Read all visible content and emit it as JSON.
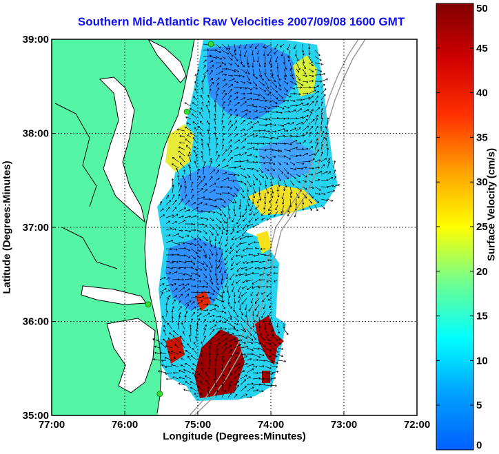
{
  "title": "Southern Mid-Atlantic Raw Velocities 2007/09/08 1600 GMT",
  "x_axis": {
    "label": "Longitude (Degrees:Minutes)",
    "ticks": [
      {
        "value": -77,
        "label": "77:00"
      },
      {
        "value": -76,
        "label": "76:00"
      },
      {
        "value": -75,
        "label": "75:00"
      },
      {
        "value": -74,
        "label": "74:00"
      },
      {
        "value": -73,
        "label": "73:00"
      },
      {
        "value": -72,
        "label": "72:00"
      }
    ],
    "range": [
      -77,
      -72
    ]
  },
  "y_axis": {
    "label": "Latitude (Degrees:Minutes)",
    "ticks": [
      {
        "value": 35,
        "label": "35:00"
      },
      {
        "value": 36,
        "label": "36:00"
      },
      {
        "value": 37,
        "label": "37:00"
      },
      {
        "value": 38,
        "label": "38:00"
      },
      {
        "value": 39,
        "label": "39:00"
      }
    ],
    "range": [
      35,
      39
    ]
  },
  "colorbar": {
    "label": "Surface Velocity (cm/s)",
    "range": [
      0,
      50
    ],
    "ticks": [
      {
        "value": 0,
        "label": "0"
      },
      {
        "value": 5,
        "label": "5"
      },
      {
        "value": 10,
        "label": "10"
      },
      {
        "value": 15,
        "label": "15"
      },
      {
        "value": 20,
        "label": "20"
      },
      {
        "value": 25,
        "label": "25"
      },
      {
        "value": 30,
        "label": "30"
      },
      {
        "value": 35,
        "label": "35"
      },
      {
        "value": 40,
        "label": "40"
      },
      {
        "value": 45,
        "label": "45"
      },
      {
        "value": 50,
        "label": "50"
      }
    ]
  },
  "colors": {
    "land": "#55f5a6",
    "ocean": "#ffffff",
    "grid": "#000000",
    "bathymetry": "#9a9a9a",
    "station": "#33dd33",
    "title": "#1010ee"
  },
  "radar_stations": [
    {
      "lon": -74.82,
      "lat": 38.95
    },
    {
      "lon": -75.15,
      "lat": 38.23
    },
    {
      "lon": -75.68,
      "lat": 36.18
    },
    {
      "lon": -75.52,
      "lat": 35.23
    }
  ]
}
